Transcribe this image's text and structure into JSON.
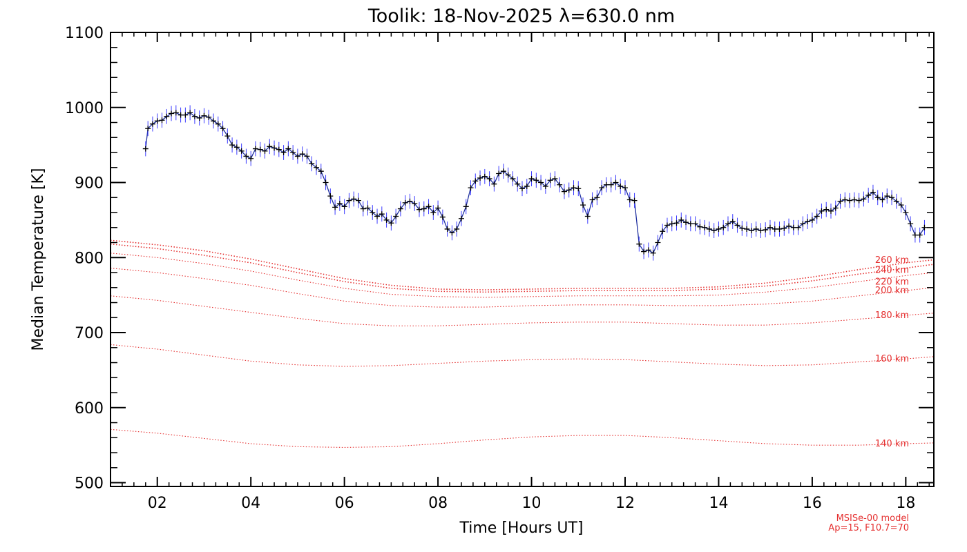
{
  "chart_data": {
    "type": "line",
    "title": "Toolik: 18-Nov-2025 λ=630.0 nm",
    "xlabel": "Time [Hours UT]",
    "ylabel": "Median Temperature [K]",
    "xlim": [
      1.0,
      18.6
    ],
    "ylim": [
      495,
      1100
    ],
    "x_ticks": [
      2,
      4,
      6,
      8,
      10,
      12,
      14,
      16,
      18
    ],
    "x_tick_labels": [
      "02",
      "04",
      "06",
      "08",
      "10",
      "12",
      "14",
      "16",
      "18"
    ],
    "y_ticks": [
      500,
      600,
      700,
      800,
      900,
      1000,
      1100
    ],
    "y_tick_labels": [
      "500",
      "600",
      "700",
      "800",
      "900",
      "1000",
      "1100"
    ],
    "grid": false,
    "colors": {
      "measurement_line": "#1f2f9f",
      "error_bars": "#3a3aff",
      "markers": "#000000",
      "model": "#e53030"
    },
    "measured": {
      "errorbar_halfwidth": 10,
      "points": [
        [
          1.75,
          945
        ],
        [
          1.8,
          972
        ],
        [
          1.9,
          978
        ],
        [
          2.0,
          982
        ],
        [
          2.1,
          983
        ],
        [
          2.2,
          988
        ],
        [
          2.3,
          992
        ],
        [
          2.4,
          993
        ],
        [
          2.5,
          990
        ],
        [
          2.6,
          990
        ],
        [
          2.7,
          993
        ],
        [
          2.8,
          988
        ],
        [
          2.9,
          986
        ],
        [
          3.0,
          989
        ],
        [
          3.1,
          987
        ],
        [
          3.2,
          982
        ],
        [
          3.3,
          978
        ],
        [
          3.4,
          972
        ],
        [
          3.5,
          962
        ],
        [
          3.6,
          950
        ],
        [
          3.7,
          947
        ],
        [
          3.8,
          942
        ],
        [
          3.9,
          935
        ],
        [
          4.0,
          932
        ],
        [
          4.1,
          945
        ],
        [
          4.2,
          944
        ],
        [
          4.3,
          942
        ],
        [
          4.4,
          948
        ],
        [
          4.5,
          946
        ],
        [
          4.6,
          944
        ],
        [
          4.7,
          940
        ],
        [
          4.8,
          945
        ],
        [
          4.9,
          940
        ],
        [
          5.0,
          935
        ],
        [
          5.1,
          938
        ],
        [
          5.2,
          935
        ],
        [
          5.3,
          925
        ],
        [
          5.4,
          920
        ],
        [
          5.5,
          915
        ],
        [
          5.6,
          900
        ],
        [
          5.7,
          882
        ],
        [
          5.8,
          867
        ],
        [
          5.9,
          872
        ],
        [
          6.0,
          868
        ],
        [
          6.1,
          876
        ],
        [
          6.2,
          878
        ],
        [
          6.3,
          876
        ],
        [
          6.4,
          865
        ],
        [
          6.5,
          866
        ],
        [
          6.6,
          860
        ],
        [
          6.7,
          855
        ],
        [
          6.8,
          858
        ],
        [
          6.9,
          850
        ],
        [
          7.0,
          846
        ],
        [
          7.1,
          855
        ],
        [
          7.2,
          865
        ],
        [
          7.3,
          873
        ],
        [
          7.4,
          875
        ],
        [
          7.5,
          872
        ],
        [
          7.6,
          864
        ],
        [
          7.7,
          865
        ],
        [
          7.8,
          868
        ],
        [
          7.9,
          860
        ],
        [
          8.0,
          866
        ],
        [
          8.1,
          854
        ],
        [
          8.2,
          838
        ],
        [
          8.3,
          833
        ],
        [
          8.4,
          838
        ],
        [
          8.5,
          852
        ],
        [
          8.6,
          868
        ],
        [
          8.7,
          893
        ],
        [
          8.8,
          902
        ],
        [
          8.9,
          906
        ],
        [
          9.0,
          908
        ],
        [
          9.1,
          905
        ],
        [
          9.2,
          898
        ],
        [
          9.3,
          912
        ],
        [
          9.4,
          915
        ],
        [
          9.5,
          910
        ],
        [
          9.6,
          905
        ],
        [
          9.7,
          898
        ],
        [
          9.8,
          892
        ],
        [
          9.9,
          895
        ],
        [
          10.0,
          905
        ],
        [
          10.1,
          903
        ],
        [
          10.2,
          900
        ],
        [
          10.3,
          895
        ],
        [
          10.4,
          903
        ],
        [
          10.5,
          905
        ],
        [
          10.6,
          897
        ],
        [
          10.7,
          888
        ],
        [
          10.8,
          890
        ],
        [
          10.9,
          893
        ],
        [
          11.0,
          892
        ],
        [
          11.1,
          870
        ],
        [
          11.2,
          855
        ],
        [
          11.3,
          877
        ],
        [
          11.4,
          880
        ],
        [
          11.5,
          893
        ],
        [
          11.6,
          897
        ],
        [
          11.7,
          897
        ],
        [
          11.8,
          900
        ],
        [
          11.9,
          895
        ],
        [
          12.0,
          893
        ],
        [
          12.1,
          877
        ],
        [
          12.2,
          876
        ],
        [
          12.3,
          818
        ],
        [
          12.4,
          808
        ],
        [
          12.5,
          810
        ],
        [
          12.6,
          806
        ],
        [
          12.7,
          820
        ],
        [
          12.8,
          835
        ],
        [
          12.9,
          843
        ],
        [
          13.0,
          845
        ],
        [
          13.1,
          846
        ],
        [
          13.2,
          850
        ],
        [
          13.3,
          847
        ],
        [
          13.4,
          845
        ],
        [
          13.5,
          845
        ],
        [
          13.6,
          841
        ],
        [
          13.7,
          840
        ],
        [
          13.8,
          838
        ],
        [
          13.9,
          836
        ],
        [
          14.0,
          838
        ],
        [
          14.1,
          840
        ],
        [
          14.2,
          845
        ],
        [
          14.3,
          848
        ],
        [
          14.4,
          843
        ],
        [
          14.5,
          839
        ],
        [
          14.6,
          838
        ],
        [
          14.7,
          836
        ],
        [
          14.8,
          838
        ],
        [
          14.9,
          836
        ],
        [
          15.0,
          837
        ],
        [
          15.1,
          840
        ],
        [
          15.2,
          838
        ],
        [
          15.3,
          838
        ],
        [
          15.4,
          839
        ],
        [
          15.5,
          842
        ],
        [
          15.6,
          840
        ],
        [
          15.7,
          840
        ],
        [
          15.8,
          845
        ],
        [
          15.9,
          848
        ],
        [
          16.0,
          850
        ],
        [
          16.1,
          855
        ],
        [
          16.2,
          862
        ],
        [
          16.3,
          864
        ],
        [
          16.4,
          862
        ],
        [
          16.5,
          866
        ],
        [
          16.6,
          875
        ],
        [
          16.7,
          877
        ],
        [
          16.8,
          876
        ],
        [
          16.9,
          877
        ],
        [
          17.0,
          876
        ],
        [
          17.1,
          878
        ],
        [
          17.2,
          883
        ],
        [
          17.3,
          887
        ],
        [
          17.4,
          880
        ],
        [
          17.5,
          877
        ],
        [
          17.6,
          882
        ],
        [
          17.7,
          880
        ],
        [
          17.8,
          875
        ],
        [
          17.9,
          870
        ],
        [
          18.0,
          860
        ],
        [
          18.1,
          845
        ],
        [
          18.2,
          830
        ],
        [
          18.3,
          830
        ],
        [
          18.4,
          840
        ]
      ]
    },
    "model_curves": {
      "x": [
        1.0,
        2.0,
        3.0,
        4.0,
        5.0,
        6.0,
        7.0,
        8.0,
        9.0,
        10.0,
        11.0,
        12.0,
        13.0,
        14.0,
        15.0,
        16.0,
        17.0,
        18.0,
        18.6
      ],
      "series": [
        {
          "name": "260 km",
          "values": [
            823,
            817,
            809,
            798,
            785,
            772,
            763,
            758,
            757,
            758,
            759,
            759,
            759,
            761,
            766,
            774,
            784,
            793,
            797
          ]
        },
        {
          "name": "240 km",
          "values": [
            818,
            812,
            803,
            793,
            780,
            768,
            759,
            755,
            754,
            755,
            756,
            756,
            756,
            758,
            762,
            769,
            778,
            786,
            791
          ]
        },
        {
          "name": "220 km",
          "values": [
            806,
            800,
            792,
            782,
            770,
            759,
            751,
            748,
            747,
            748,
            749,
            749,
            749,
            750,
            754,
            760,
            768,
            776,
            780
          ]
        },
        {
          "name": "200 km",
          "values": [
            786,
            780,
            772,
            763,
            752,
            742,
            736,
            734,
            734,
            736,
            737,
            737,
            736,
            736,
            738,
            742,
            749,
            756,
            760
          ]
        },
        {
          "name": "180 km",
          "values": [
            749,
            743,
            735,
            727,
            719,
            712,
            709,
            709,
            711,
            713,
            714,
            714,
            712,
            710,
            710,
            713,
            718,
            723,
            726
          ]
        },
        {
          "name": "160 km",
          "values": [
            684,
            678,
            670,
            662,
            657,
            655,
            656,
            659,
            662,
            664,
            665,
            664,
            661,
            658,
            656,
            657,
            661,
            665,
            668
          ]
        },
        {
          "name": "140 km",
          "values": [
            571,
            566,
            559,
            552,
            548,
            547,
            548,
            552,
            557,
            561,
            563,
            563,
            560,
            556,
            552,
            550,
            550,
            552,
            553
          ]
        }
      ]
    },
    "model_note": [
      "MSISe-00 model",
      "Ap=15, F10.7=70"
    ]
  }
}
